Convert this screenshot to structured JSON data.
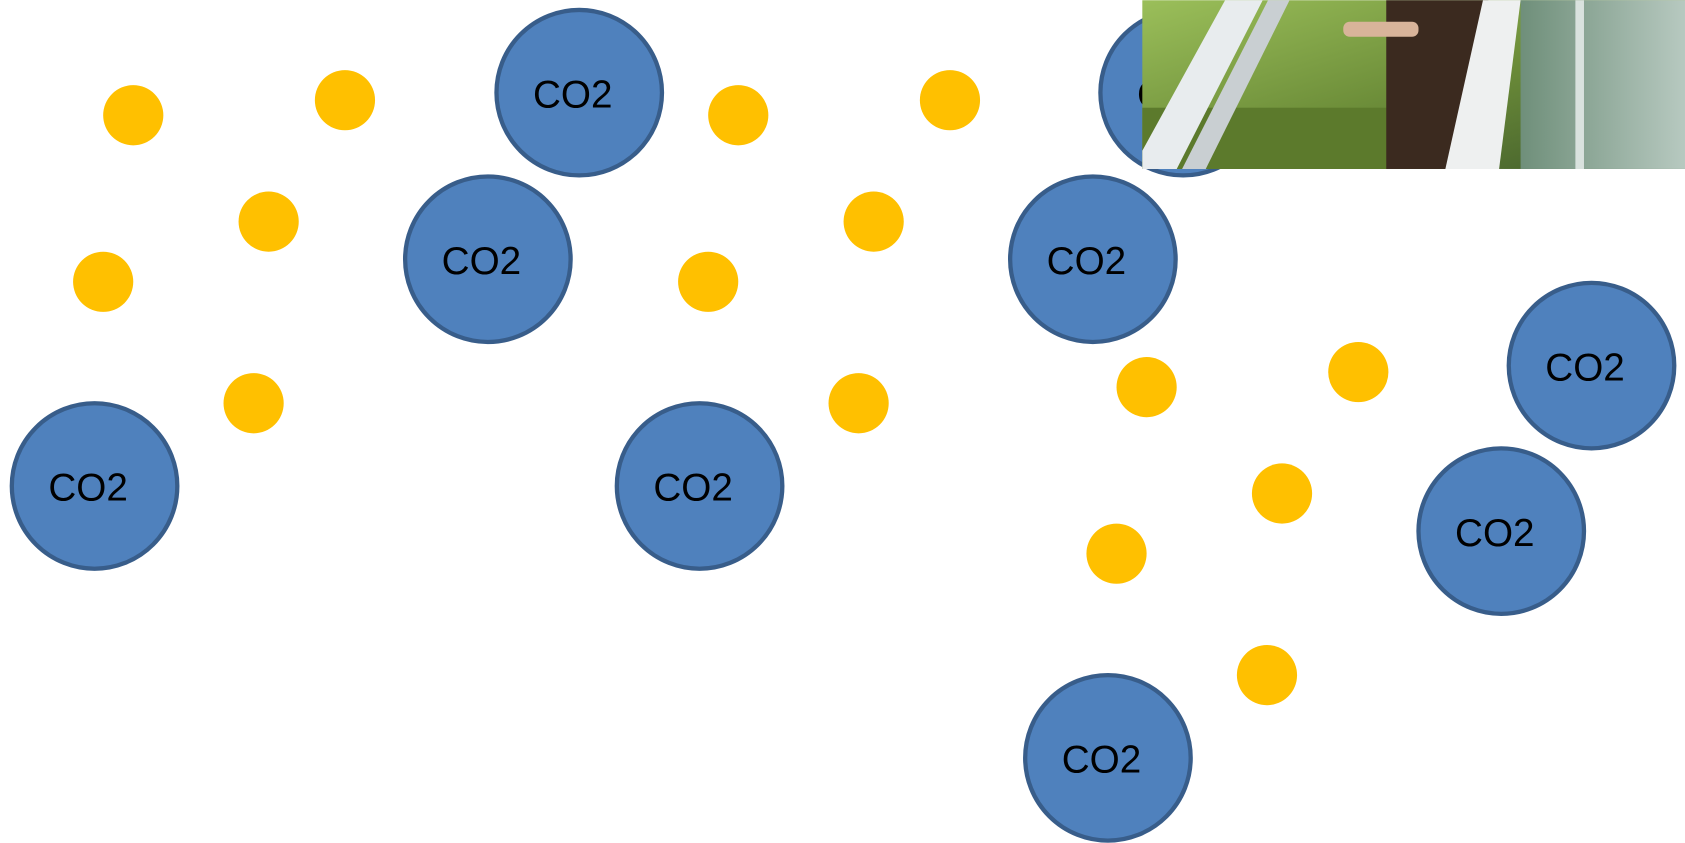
{
  "nodes": [
    {
      "label": "CO2"
    },
    {
      "label": "CO2"
    },
    {
      "label": "CO2"
    },
    {
      "label": "CO2"
    },
    {
      "label": "CO2"
    },
    {
      "label": "CO2"
    },
    {
      "label": "CO2"
    },
    {
      "label": "CO2"
    },
    {
      "label": "CO2"
    }
  ]
}
